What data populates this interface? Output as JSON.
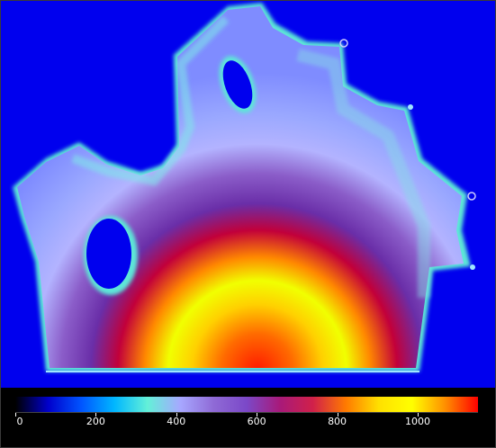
{
  "image": {
    "description_type": "color-mapped field plot",
    "background_color": "#0000ee",
    "colormap": [
      "#0000ff",
      "#00b7ff",
      "#63f0d8",
      "#a7a7ff",
      "#7b48c8",
      "#c00060",
      "#ff8b00",
      "#ffff00",
      "#ff0000"
    ]
  },
  "colorbar": {
    "ticks": [
      "0",
      "200",
      "400",
      "600",
      "800",
      "1000"
    ],
    "tick_values": [
      0,
      200,
      400,
      600,
      800,
      1000
    ],
    "min": 0,
    "max": 1150
  }
}
